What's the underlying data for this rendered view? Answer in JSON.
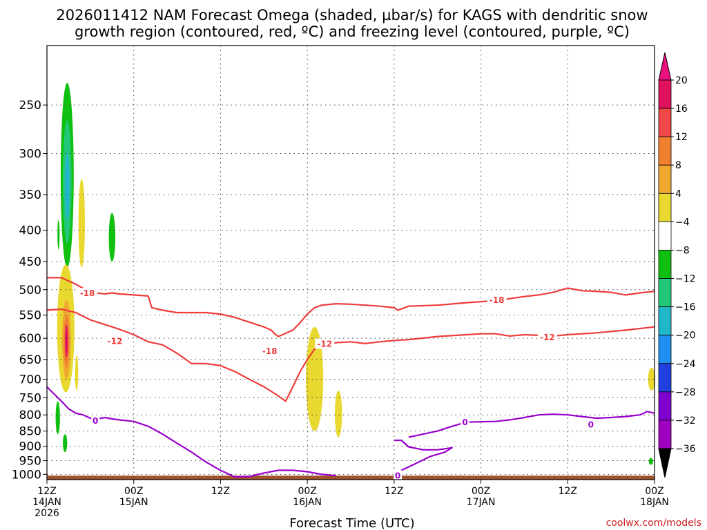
{
  "title": {
    "line1": "2026011412 NAM Forecast Omega (shaded, µbar/s) for KAGS with dendritic snow",
    "line2": "growth region (contoured, red, ºC) and freezing level (contoured, purple, ºC)"
  },
  "credit": "coolwx.com/models",
  "chart_data": {
    "type": "heatmap",
    "xlabel": "Forecast Time (UTC)",
    "x_range_hours": [
      0,
      84
    ],
    "x_ticks": [
      {
        "hour": 0,
        "line1": "12Z",
        "line2": "14JAN",
        "line3": "2026"
      },
      {
        "hour": 12,
        "line1": "00Z",
        "line2": "15JAN",
        "line3": ""
      },
      {
        "hour": 24,
        "line1": "12Z",
        "line2": "",
        "line3": ""
      },
      {
        "hour": 36,
        "line1": "00Z",
        "line2": "16JAN",
        "line3": ""
      },
      {
        "hour": 48,
        "line1": "12Z",
        "line2": "",
        "line3": ""
      },
      {
        "hour": 60,
        "line1": "00Z",
        "line2": "17JAN",
        "line3": ""
      },
      {
        "hour": 72,
        "line1": "12Z",
        "line2": "",
        "line3": ""
      },
      {
        "hour": 84,
        "line1": "00Z",
        "line2": "18JAN",
        "line3": ""
      }
    ],
    "y_scale": "log-pressure",
    "y_range_hpa": [
      1020,
      200
    ],
    "y_ticks": [
      250,
      300,
      350,
      400,
      450,
      500,
      550,
      600,
      650,
      700,
      750,
      800,
      850,
      900,
      950,
      1000
    ],
    "grid": true,
    "colorbar": {
      "ticks": [
        "20",
        "16",
        "12",
        "8",
        "4",
        "−4",
        "−8",
        "−12",
        "−16",
        "−20",
        "−24",
        "−28",
        "−32",
        "−36"
      ],
      "colors": [
        "#e0115f",
        "#f04848",
        "#f08030",
        "#f0a830",
        "#e8d830",
        "#ffffff",
        "#10c010",
        "#20c878",
        "#20b8c8",
        "#2090f0",
        "#2040e0",
        "#8000d0",
        "#a000c0",
        "#a0a0a0"
      ],
      "arrow_top_color": "#e8117f",
      "arrow_bottom_color": "#000000"
    },
    "ground_color": "#a0522d",
    "ground_top_hpa": 1005,
    "shaded_regions": [
      {
        "color": "#10c010",
        "hour_center": 2.8,
        "hour_halfwidth": 0.9,
        "p_top": 230,
        "p_bot": 460
      },
      {
        "color": "#20c878",
        "hour_center": 2.8,
        "hour_halfwidth": 0.6,
        "p_top": 265,
        "p_bot": 420
      },
      {
        "color": "#20b8c8",
        "hour_center": 2.8,
        "hour_halfwidth": 0.35,
        "p_top": 300,
        "p_bot": 385
      },
      {
        "color": "#10c010",
        "hour_center": 1.6,
        "hour_halfwidth": 0.15,
        "p_top": 385,
        "p_bot": 430
      },
      {
        "color": "#e8d830",
        "hour_center": 4.8,
        "hour_halfwidth": 0.45,
        "p_top": 330,
        "p_bot": 460
      },
      {
        "color": "#10c010",
        "hour_center": 9.0,
        "hour_halfwidth": 0.45,
        "p_top": 375,
        "p_bot": 450
      },
      {
        "color": "#e8d830",
        "hour_center": 2.6,
        "hour_halfwidth": 1.2,
        "p_top": 455,
        "p_bot": 735
      },
      {
        "color": "#f0a830",
        "hour_center": 2.7,
        "hour_halfwidth": 0.6,
        "p_top": 520,
        "p_bot": 700
      },
      {
        "color": "#f08030",
        "hour_center": 2.7,
        "hour_halfwidth": 0.4,
        "p_top": 550,
        "p_bot": 670
      },
      {
        "color": "#e0115f",
        "hour_center": 2.7,
        "hour_halfwidth": 0.2,
        "p_top": 570,
        "p_bot": 645
      },
      {
        "color": "#e8d830",
        "hour_center": 4.1,
        "hour_halfwidth": 0.22,
        "p_top": 640,
        "p_bot": 730
      },
      {
        "color": "#10c010",
        "hour_center": 1.5,
        "hour_halfwidth": 0.3,
        "p_top": 760,
        "p_bot": 860
      },
      {
        "color": "#10c010",
        "hour_center": 2.5,
        "hour_halfwidth": 0.3,
        "p_top": 860,
        "p_bot": 920
      },
      {
        "color": "#e8d830",
        "hour_center": 37.0,
        "hour_halfwidth": 1.2,
        "p_top": 575,
        "p_bot": 850
      },
      {
        "color": "#e8d830",
        "hour_center": 40.3,
        "hour_halfwidth": 0.5,
        "p_top": 730,
        "p_bot": 870
      },
      {
        "color": "#e8d830",
        "hour_center": 83.6,
        "hour_halfwidth": 0.5,
        "p_top": 670,
        "p_bot": 730
      },
      {
        "color": "#10c010",
        "hour_center": 83.5,
        "hour_halfwidth": 0.3,
        "p_top": 940,
        "p_bot": 965
      }
    ],
    "contours": [
      {
        "level": "-18",
        "color": "#ee3b3b",
        "points": [
          [
            0,
            478
          ],
          [
            2,
            478
          ],
          [
            4,
            490
          ],
          [
            6,
            505
          ],
          [
            8,
            508
          ],
          [
            9,
            506
          ],
          [
            10,
            508
          ],
          [
            12,
            510
          ],
          [
            14,
            512
          ],
          [
            14.5,
            535
          ],
          [
            16,
            540
          ],
          [
            18,
            545
          ],
          [
            22,
            545
          ],
          [
            24,
            548
          ],
          [
            26,
            555
          ],
          [
            28,
            565
          ],
          [
            30,
            575
          ],
          [
            31,
            582
          ],
          [
            31.5,
            590
          ],
          [
            32,
            596
          ],
          [
            34,
            582
          ],
          [
            35,
            566
          ],
          [
            36,
            548
          ],
          [
            37,
            535
          ],
          [
            38,
            530
          ],
          [
            40,
            527
          ],
          [
            42,
            528
          ],
          [
            44,
            530
          ],
          [
            46,
            532
          ],
          [
            48,
            535
          ],
          [
            48.5,
            540
          ],
          [
            50,
            532
          ],
          [
            54,
            530
          ],
          [
            58,
            525
          ],
          [
            60,
            523
          ],
          [
            62,
            521
          ],
          [
            64,
            517
          ],
          [
            66,
            513
          ],
          [
            68,
            510
          ],
          [
            70,
            505
          ],
          [
            72,
            497
          ],
          [
            74,
            502
          ],
          [
            76,
            503
          ],
          [
            78,
            505
          ],
          [
            80,
            510
          ],
          [
            82,
            506
          ],
          [
            84,
            503
          ]
        ]
      },
      {
        "level": "-12",
        "color": "#ee3b3b",
        "points": [
          [
            0,
            540
          ],
          [
            2,
            538
          ],
          [
            4,
            545
          ],
          [
            6,
            560
          ],
          [
            8,
            570
          ],
          [
            10,
            580
          ],
          [
            12,
            592
          ],
          [
            14,
            608
          ],
          [
            16,
            615
          ],
          [
            18,
            635
          ],
          [
            20,
            660
          ],
          [
            22,
            660
          ],
          [
            24,
            665
          ],
          [
            26,
            680
          ],
          [
            28,
            700
          ],
          [
            30,
            720
          ],
          [
            32,
            745
          ],
          [
            33,
            760
          ],
          [
            34,
            720
          ],
          [
            35,
            680
          ],
          [
            36,
            650
          ],
          [
            37,
            625
          ],
          [
            38,
            615
          ],
          [
            40,
            610
          ],
          [
            42,
            608
          ],
          [
            44,
            612
          ],
          [
            46,
            608
          ],
          [
            48,
            605
          ],
          [
            50,
            603
          ],
          [
            54,
            596
          ],
          [
            58,
            592
          ],
          [
            60,
            590
          ],
          [
            62,
            590
          ],
          [
            64,
            595
          ],
          [
            66,
            592
          ],
          [
            70,
            595
          ],
          [
            72,
            592
          ],
          [
            76,
            588
          ],
          [
            80,
            582
          ],
          [
            84,
            575
          ]
        ]
      },
      {
        "level": "0",
        "color": "#9900cc",
        "points": [
          [
            0,
            720
          ],
          [
            1,
            740
          ],
          [
            2,
            760
          ],
          [
            3,
            782
          ],
          [
            4,
            795
          ],
          [
            5,
            800
          ],
          [
            6,
            810
          ],
          [
            7,
            812
          ],
          [
            8,
            808
          ],
          [
            9,
            812
          ],
          [
            10,
            815
          ],
          [
            12,
            820
          ],
          [
            14,
            835
          ],
          [
            16,
            860
          ],
          [
            18,
            890
          ],
          [
            20,
            920
          ],
          [
            22,
            955
          ],
          [
            24,
            985
          ],
          [
            26,
            1010
          ],
          [
            28,
            1008
          ],
          [
            30,
            995
          ],
          [
            32,
            985
          ],
          [
            34,
            985
          ],
          [
            36,
            990
          ],
          [
            38,
            1000
          ],
          [
            40,
            1005
          ]
        ]
      },
      {
        "level": "0",
        "color": "#9900cc",
        "points": [
          [
            48,
            880
          ],
          [
            49,
            880
          ],
          [
            50,
            902
          ],
          [
            52,
            912
          ],
          [
            54,
            912
          ],
          [
            56,
            905
          ],
          [
            55,
            920
          ],
          [
            53,
            935
          ],
          [
            51,
            960
          ],
          [
            49,
            985
          ],
          [
            48,
            1005
          ]
        ]
      },
      {
        "level": "0",
        "color": "#9900cc",
        "points": [
          [
            50,
            870
          ],
          [
            52,
            860
          ],
          [
            54,
            850
          ],
          [
            56,
            835
          ],
          [
            58,
            822
          ],
          [
            62,
            820
          ],
          [
            64,
            815
          ],
          [
            66,
            808
          ],
          [
            68,
            800
          ],
          [
            70,
            798
          ],
          [
            72,
            800
          ],
          [
            74,
            805
          ],
          [
            76,
            810
          ],
          [
            78,
            808
          ],
          [
            80,
            805
          ],
          [
            82,
            800
          ],
          [
            83,
            790
          ],
          [
            84,
            795
          ]
        ]
      }
    ],
    "contour_labels": [
      {
        "text": "-18",
        "hour": 5.6,
        "p": 507,
        "color": "#ee3b3b"
      },
      {
        "text": "-12",
        "hour": 9.4,
        "p": 607,
        "color": "#ee3b3b"
      },
      {
        "text": "-18",
        "hour": 30.8,
        "p": 630,
        "color": "#ee3b3b"
      },
      {
        "text": "-12",
        "hour": 38.4,
        "p": 613,
        "color": "#ee3b3b"
      },
      {
        "text": "-18",
        "hour": 62.2,
        "p": 520,
        "color": "#ee3b3b"
      },
      {
        "text": "-12",
        "hour": 69.2,
        "p": 598,
        "color": "#ee3b3b"
      },
      {
        "text": "0",
        "hour": 6.7,
        "p": 818,
        "color": "#9900cc"
      },
      {
        "text": "0",
        "hour": 57.8,
        "p": 823,
        "color": "#9900cc"
      },
      {
        "text": "0",
        "hour": 75.2,
        "p": 830,
        "color": "#9900cc"
      },
      {
        "text": "0",
        "hour": 48.5,
        "p": 1005,
        "color": "#9900cc"
      }
    ]
  }
}
